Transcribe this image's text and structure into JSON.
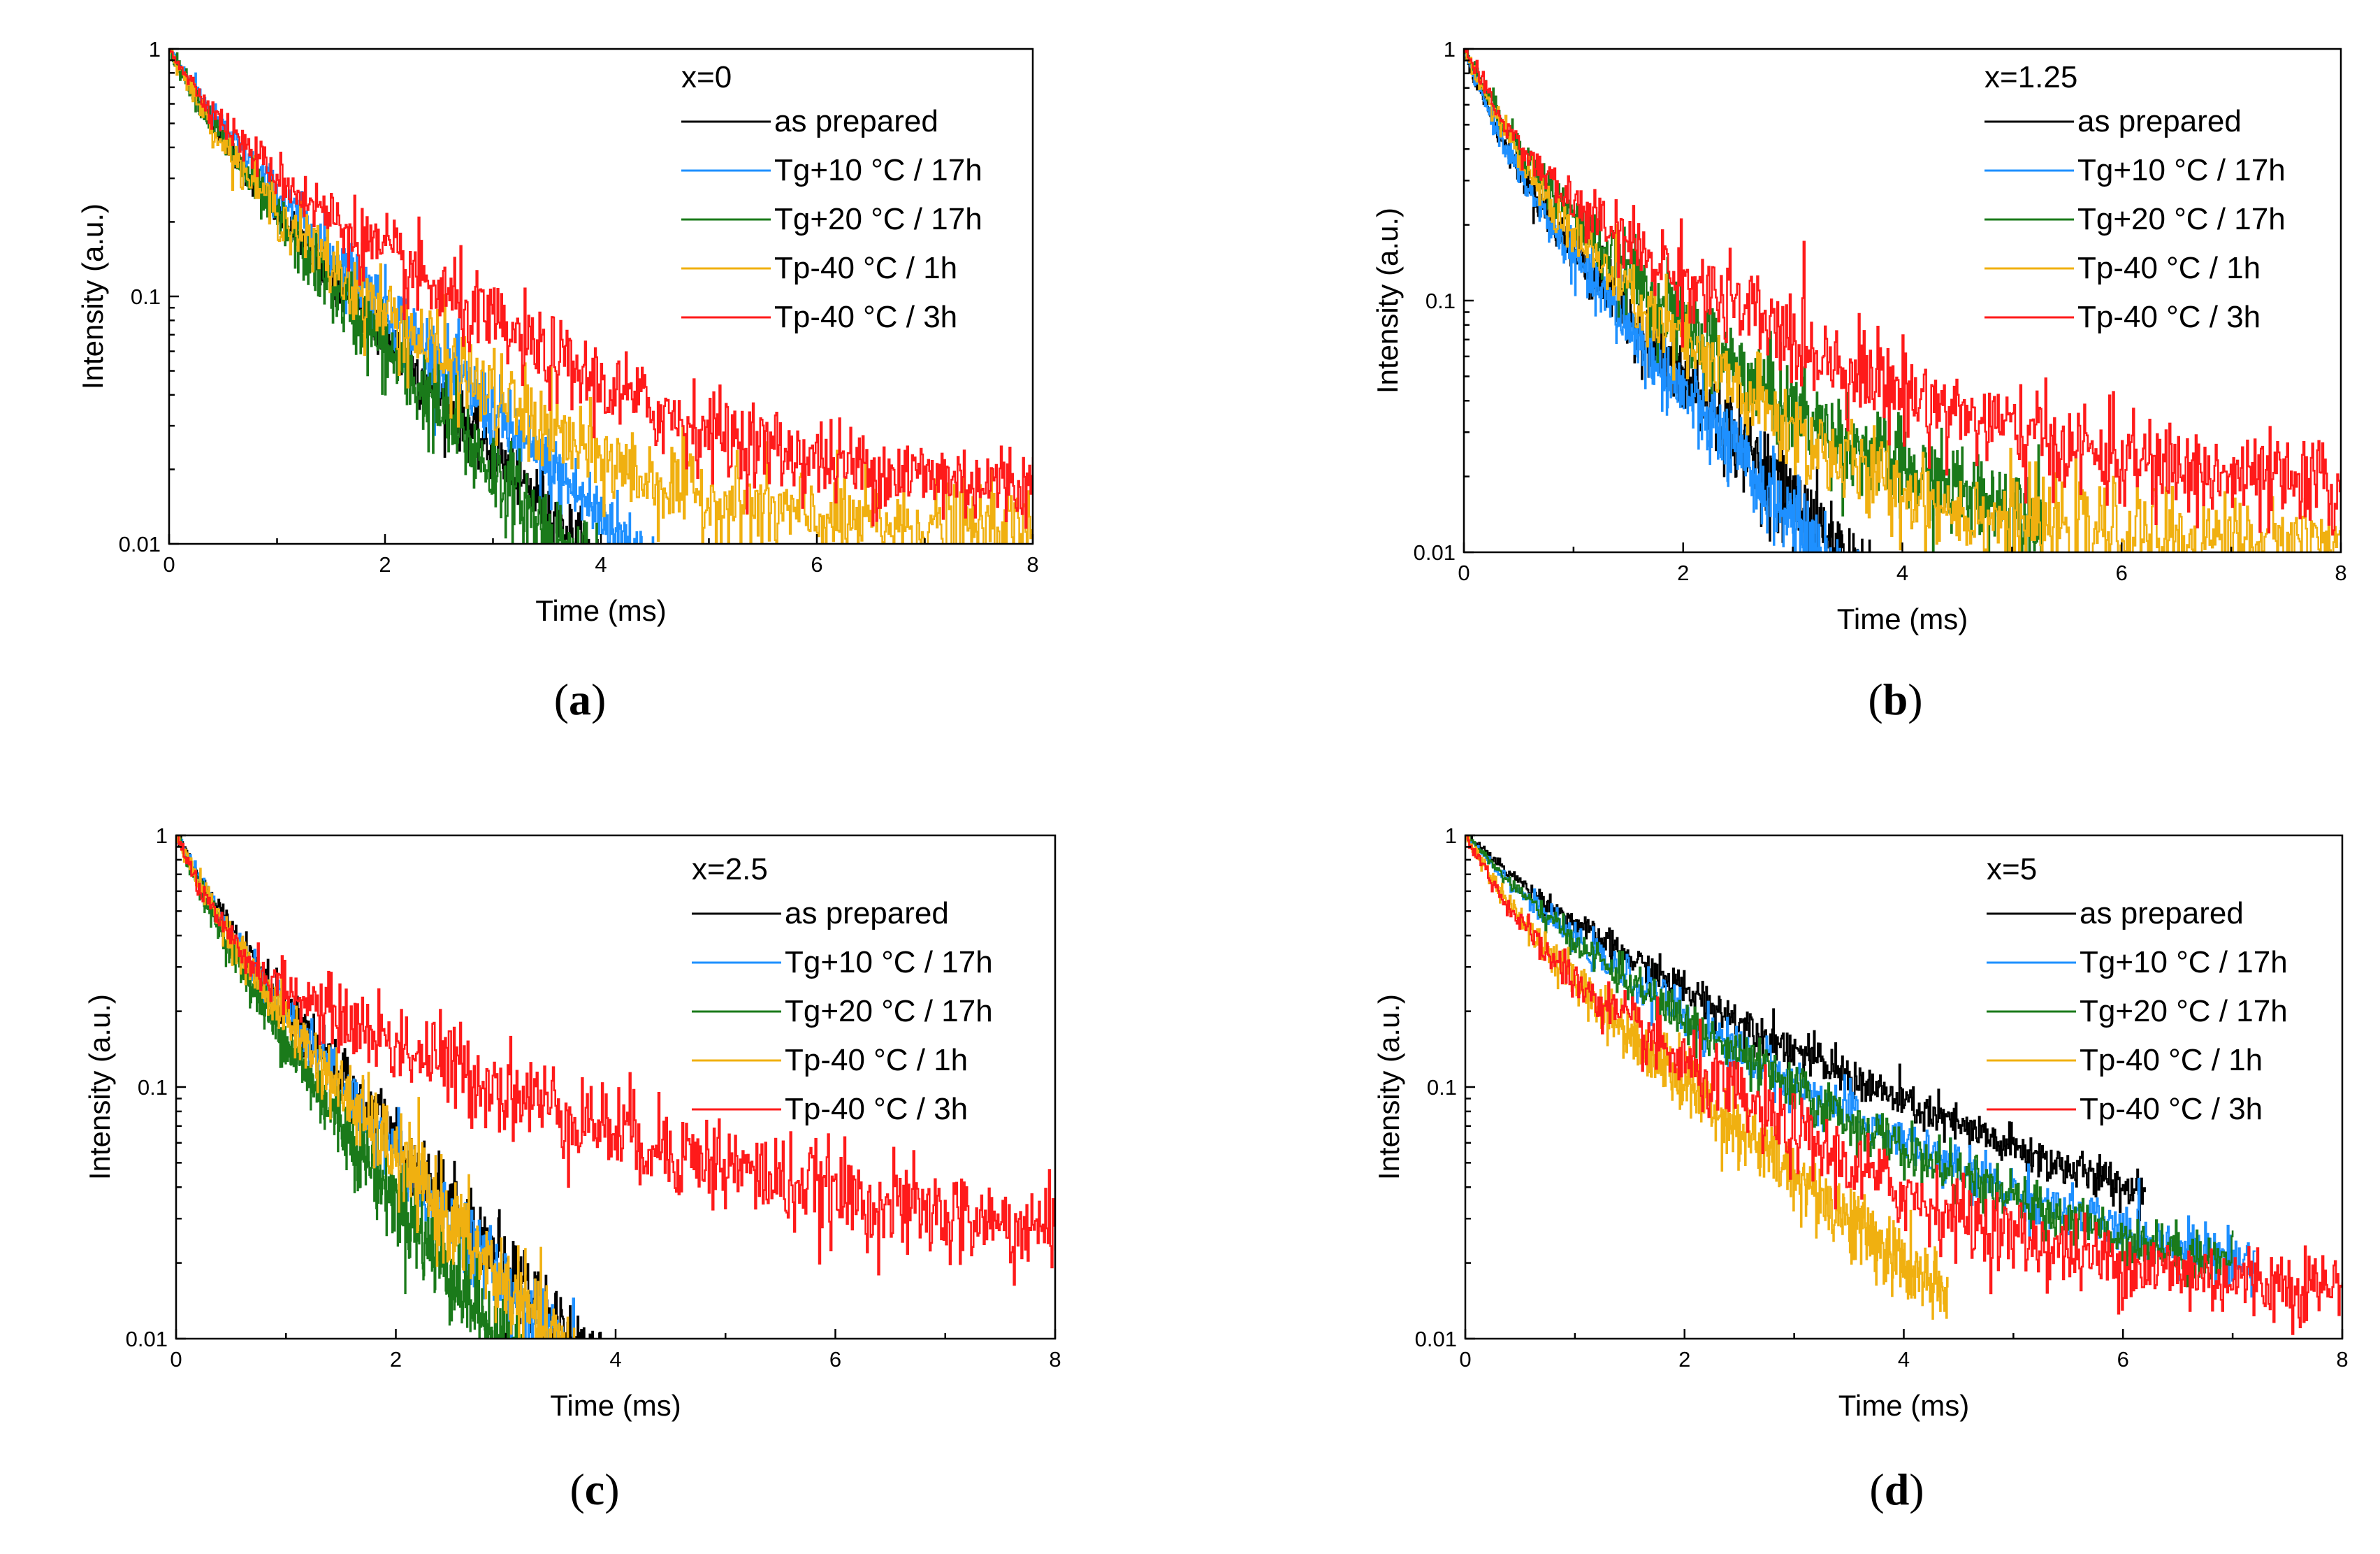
{
  "chart_data": [
    {
      "type": "line",
      "panel_label": "(a)",
      "panel_letter": "a",
      "legend_title": "x=0",
      "xlabel": "Time (ms)",
      "ylabel": "Intensity (a.u.)",
      "xlim": [
        0,
        8
      ],
      "ylim": [
        0.01,
        1
      ],
      "yscale": "log",
      "x_ticks": [
        "0",
        "2",
        "4",
        "6",
        "8"
      ],
      "y_ticks": [
        "0.01",
        "0.1",
        "1"
      ],
      "legend_position": "top-right",
      "series": [
        {
          "name": "as prepared",
          "color": "#000000",
          "a1": 0.45,
          "tau1": 0.35,
          "a2": 0.55,
          "tau2": 0.95,
          "floor": 0.0,
          "noise": 0.15,
          "cutoff": 5.1
        },
        {
          "name": "Tg+10 °C / 17h",
          "color": "#1e90ff",
          "a1": 0.42,
          "tau1": 0.4,
          "a2": 0.58,
          "tau2": 1.05,
          "floor": 0.0,
          "noise": 0.18,
          "cutoff": 5.0
        },
        {
          "name": "Tg+20 °C / 17h",
          "color": "#1a7a1a",
          "a1": 0.45,
          "tau1": 0.35,
          "a2": 0.55,
          "tau2": 0.9,
          "floor": 0.0,
          "noise": 0.22,
          "cutoff": 5.0
        },
        {
          "name": "Tp-40 °C / 1h",
          "color": "#f0b010",
          "a1": 0.5,
          "tau1": 0.3,
          "a2": 0.5,
          "tau2": 1.05,
          "floor": 0.011,
          "noise": 0.22,
          "cutoff": 8.0
        },
        {
          "name": "Tp-40 °C / 3h",
          "color": "#ff1a1a",
          "a1": 0.4,
          "tau1": 0.3,
          "a2": 0.6,
          "tau2": 1.3,
          "floor": 0.016,
          "noise": 0.2,
          "cutoff": 8.0
        }
      ]
    },
    {
      "type": "line",
      "panel_label": "(b)",
      "panel_letter": "b",
      "legend_title": "x=1.25",
      "xlabel": "Time (ms)",
      "ylabel": "Intensity (a.u.)",
      "xlim": [
        0,
        8
      ],
      "ylim": [
        0.01,
        1
      ],
      "yscale": "log",
      "x_ticks": [
        "0",
        "2",
        "4",
        "6",
        "8"
      ],
      "y_ticks": [
        "0.01",
        "0.1",
        "1"
      ],
      "legend_position": "top-right",
      "series": [
        {
          "name": "as prepared",
          "color": "#000000",
          "a1": 0.55,
          "tau1": 0.25,
          "a2": 0.45,
          "tau2": 0.9,
          "floor": 0.0,
          "noise": 0.2,
          "cutoff": 4.3
        },
        {
          "name": "Tg+10 °C / 17h",
          "color": "#1e90ff",
          "a1": 0.55,
          "tau1": 0.25,
          "a2": 0.45,
          "tau2": 0.85,
          "floor": 0.0,
          "noise": 0.2,
          "cutoff": 4.3
        },
        {
          "name": "Tg+20 °C / 17h",
          "color": "#1a7a1a",
          "a1": 0.5,
          "tau1": 0.3,
          "a2": 0.5,
          "tau2": 1.0,
          "floor": 0.012,
          "noise": 0.22,
          "cutoff": 5.3
        },
        {
          "name": "Tp-40 °C / 1h",
          "color": "#f0b010",
          "a1": 0.55,
          "tau1": 0.28,
          "a2": 0.45,
          "tau2": 0.95,
          "floor": 0.011,
          "noise": 0.22,
          "cutoff": 8.0
        },
        {
          "name": "Tp-40 °C / 3h",
          "color": "#ff1a1a",
          "a1": 0.6,
          "tau1": 0.3,
          "a2": 0.4,
          "tau2": 1.5,
          "floor": 0.016,
          "noise": 0.22,
          "cutoff": 8.0
        }
      ]
    },
    {
      "type": "line",
      "panel_label": "(c)",
      "panel_letter": "c",
      "legend_title": "x=2.5",
      "xlabel": "Time (ms)",
      "ylabel": "Intensity (a.u.)",
      "xlim": [
        0,
        8
      ],
      "ylim": [
        0.01,
        1
      ],
      "yscale": "log",
      "x_ticks": [
        "0",
        "2",
        "4",
        "6",
        "8"
      ],
      "y_ticks": [
        "0.01",
        "0.1",
        "1"
      ],
      "legend_position": "top-right",
      "series": [
        {
          "name": "as prepared",
          "color": "#000000",
          "a1": 0.45,
          "tau1": 0.35,
          "a2": 0.55,
          "tau2": 0.9,
          "floor": 0.0,
          "noise": 0.18,
          "cutoff": 5.5
        },
        {
          "name": "Tg+10 °C / 17h",
          "color": "#1e90ff",
          "a1": 0.45,
          "tau1": 0.35,
          "a2": 0.55,
          "tau2": 0.85,
          "floor": 0.0,
          "noise": 0.2,
          "cutoff": 7.9
        },
        {
          "name": "Tg+20 °C / 17h",
          "color": "#1a7a1a",
          "a1": 0.5,
          "tau1": 0.3,
          "a2": 0.5,
          "tau2": 0.75,
          "floor": 0.0,
          "noise": 0.22,
          "cutoff": 3.4
        },
        {
          "name": "Tp-40 °C / 1h",
          "color": "#f0b010",
          "a1": 0.45,
          "tau1": 0.3,
          "a2": 0.55,
          "tau2": 0.85,
          "floor": 0.0,
          "noise": 0.22,
          "cutoff": 4.5
        },
        {
          "name": "Tp-40 °C / 3h",
          "color": "#ff1a1a",
          "a1": 0.65,
          "tau1": 0.25,
          "a2": 0.35,
          "tau2": 2.0,
          "floor": 0.02,
          "noise": 0.22,
          "cutoff": 8.0
        }
      ]
    },
    {
      "type": "line",
      "panel_label": "(d)",
      "panel_letter": "d",
      "legend_title": "x=5",
      "xlabel": "Time (ms)",
      "ylabel": "Intensity (a.u.)",
      "xlim": [
        0,
        8
      ],
      "ylim": [
        0.01,
        1
      ],
      "yscale": "log",
      "x_ticks": [
        "0",
        "2",
        "4",
        "6",
        "8"
      ],
      "y_ticks": [
        "0.01",
        "0.1",
        "1"
      ],
      "legend_position": "top-right",
      "series": [
        {
          "name": "as prepared",
          "color": "#000000",
          "a1": 0.3,
          "tau1": 0.5,
          "a2": 0.7,
          "tau2": 1.7,
          "floor": 0.02,
          "noise": 0.1,
          "cutoff": 6.2
        },
        {
          "name": "Tg+10 °C / 17h",
          "color": "#1e90ff",
          "a1": 0.35,
          "tau1": 0.45,
          "a2": 0.65,
          "tau2": 1.5,
          "floor": 0.015,
          "noise": 0.12,
          "cutoff": 7.2
        },
        {
          "name": "Tg+20 °C / 17h",
          "color": "#1a7a1a",
          "a1": 0.35,
          "tau1": 0.45,
          "a2": 0.65,
          "tau2": 1.45,
          "floor": 0.015,
          "noise": 0.12,
          "cutoff": 7.0
        },
        {
          "name": "Tp-40 °C / 1h",
          "color": "#f0b010",
          "a1": 0.45,
          "tau1": 0.35,
          "a2": 0.55,
          "tau2": 1.2,
          "floor": 0.0,
          "noise": 0.18,
          "cutoff": 4.4
        },
        {
          "name": "Tp-40 °C / 3h",
          "color": "#ff1a1a",
          "a1": 0.5,
          "tau1": 0.3,
          "a2": 0.5,
          "tau2": 1.3,
          "floor": 0.015,
          "noise": 0.18,
          "cutoff": 8.0
        }
      ]
    }
  ]
}
